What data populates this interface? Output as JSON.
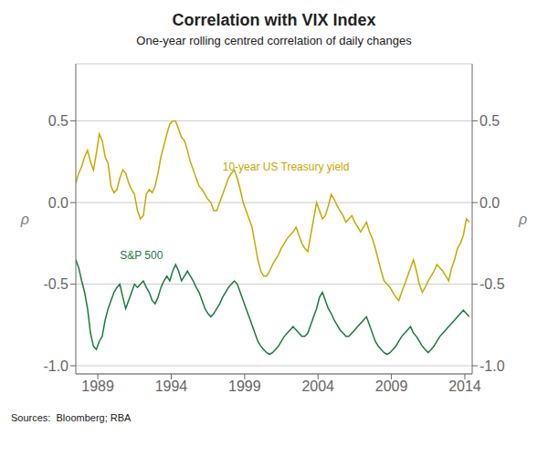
{
  "chart_data": {
    "type": "line",
    "title": "Correlation with VIX Index",
    "subtitle": "One-year rolling centred correlation of daily changes",
    "ylabel": "ρ",
    "y2label": "ρ",
    "source": "Sources:  Bloomberg; RBA",
    "xlim": [
      1987.5,
      2014.5
    ],
    "ylim": [
      -1.05,
      0.85
    ],
    "yticks": [
      {
        "value": -1.0,
        "label": "-1.0"
      },
      -0.5,
      {
        "value": 0.0,
        "label": "0.0"
      },
      0.5
    ],
    "y2lim": [
      -1.05,
      0.85
    ],
    "y2ticks": [
      {
        "value": -1.0,
        "label": "-1.0"
      },
      -0.5,
      {
        "value": 0.0,
        "label": "0.0"
      },
      0.5
    ],
    "xticks": [
      1989,
      1994,
      1999,
      2004,
      2009,
      2014
    ],
    "grid": true,
    "annotations": [
      {
        "text": "10-year US Treasury yield",
        "x": 1997.5,
        "y": 0.22,
        "color": "#C8A800"
      },
      {
        "text": "S&P 500",
        "x": 1990.5,
        "y": -0.32,
        "color": "#1B7A3E"
      }
    ],
    "x": [
      1987.5,
      1987.7,
      1987.9,
      1988.1,
      1988.3,
      1988.5,
      1988.7,
      1988.9,
      1989.1,
      1989.3,
      1989.5,
      1989.7,
      1989.9,
      1990.1,
      1990.3,
      1990.5,
      1990.7,
      1990.9,
      1991.1,
      1991.3,
      1991.5,
      1991.7,
      1991.9,
      1992.1,
      1992.3,
      1992.5,
      1992.7,
      1992.9,
      1993.1,
      1993.3,
      1993.5,
      1993.7,
      1993.9,
      1994.1,
      1994.3,
      1994.5,
      1994.7,
      1994.9,
      1995.1,
      1995.3,
      1995.5,
      1995.7,
      1995.9,
      1996.1,
      1996.3,
      1996.5,
      1996.7,
      1996.9,
      1997.1,
      1997.3,
      1997.5,
      1997.7,
      1997.9,
      1998.1,
      1998.3,
      1998.5,
      1998.7,
      1998.9,
      1999.1,
      1999.3,
      1999.5,
      1999.7,
      1999.9,
      2000.1,
      2000.3,
      2000.5,
      2000.7,
      2000.9,
      2001.1,
      2001.3,
      2001.5,
      2001.7,
      2001.9,
      2002.1,
      2002.3,
      2002.5,
      2002.7,
      2002.9,
      2003.1,
      2003.3,
      2003.5,
      2003.7,
      2003.9,
      2004.1,
      2004.3,
      2004.5,
      2004.7,
      2004.9,
      2005.1,
      2005.3,
      2005.5,
      2005.7,
      2005.9,
      2006.1,
      2006.3,
      2006.5,
      2006.7,
      2006.9,
      2007.1,
      2007.3,
      2007.5,
      2007.7,
      2007.9,
      2008.1,
      2008.3,
      2008.5,
      2008.7,
      2008.9,
      2009.1,
      2009.3,
      2009.5,
      2009.7,
      2009.9,
      2010.1,
      2010.3,
      2010.5,
      2010.7,
      2010.9,
      2011.1,
      2011.3,
      2011.5,
      2011.7,
      2011.9,
      2012.1,
      2012.3,
      2012.5,
      2012.7,
      2012.9,
      2013.1,
      2013.3,
      2013.5,
      2013.7,
      2013.9,
      2014.1,
      2014.3
    ],
    "series": [
      {
        "color": "#C8A800",
        "values": [
          0.12,
          0.18,
          0.22,
          0.28,
          0.32,
          0.25,
          0.2,
          0.3,
          0.42,
          0.38,
          0.28,
          0.24,
          0.1,
          0.06,
          0.08,
          0.15,
          0.2,
          0.18,
          0.12,
          0.08,
          0.05,
          -0.05,
          -0.1,
          -0.08,
          0.05,
          0.08,
          0.06,
          0.1,
          0.18,
          0.28,
          0.35,
          0.42,
          0.48,
          0.5,
          0.5,
          0.45,
          0.4,
          0.38,
          0.32,
          0.25,
          0.2,
          0.15,
          0.1,
          0.08,
          0.05,
          0.02,
          0.0,
          -0.05,
          -0.05,
          0.0,
          0.05,
          0.1,
          0.15,
          0.18,
          0.2,
          0.15,
          0.08,
          0.0,
          -0.05,
          -0.1,
          -0.15,
          -0.25,
          -0.35,
          -0.42,
          -0.45,
          -0.45,
          -0.42,
          -0.38,
          -0.35,
          -0.32,
          -0.28,
          -0.25,
          -0.22,
          -0.2,
          -0.18,
          -0.15,
          -0.2,
          -0.25,
          -0.28,
          -0.3,
          -0.2,
          -0.1,
          0.0,
          -0.05,
          -0.1,
          -0.08,
          -0.02,
          0.05,
          0.02,
          -0.02,
          -0.05,
          -0.08,
          -0.12,
          -0.1,
          -0.08,
          -0.12,
          -0.15,
          -0.18,
          -0.15,
          -0.12,
          -0.18,
          -0.22,
          -0.28,
          -0.35,
          -0.42,
          -0.48,
          -0.5,
          -0.52,
          -0.55,
          -0.58,
          -0.6,
          -0.55,
          -0.5,
          -0.45,
          -0.4,
          -0.35,
          -0.42,
          -0.5,
          -0.55,
          -0.52,
          -0.48,
          -0.45,
          -0.42,
          -0.38,
          -0.4,
          -0.42,
          -0.45,
          -0.48,
          -0.4,
          -0.35,
          -0.28,
          -0.25,
          -0.2,
          -0.1,
          -0.12
        ]
      },
      {
        "color": "#1B7A3E",
        "values": [
          -0.35,
          -0.4,
          -0.48,
          -0.55,
          -0.65,
          -0.8,
          -0.88,
          -0.9,
          -0.85,
          -0.82,
          -0.72,
          -0.65,
          -0.6,
          -0.55,
          -0.52,
          -0.5,
          -0.58,
          -0.65,
          -0.6,
          -0.55,
          -0.5,
          -0.52,
          -0.5,
          -0.48,
          -0.52,
          -0.55,
          -0.6,
          -0.62,
          -0.58,
          -0.52,
          -0.48,
          -0.45,
          -0.48,
          -0.42,
          -0.38,
          -0.42,
          -0.48,
          -0.45,
          -0.42,
          -0.45,
          -0.48,
          -0.52,
          -0.55,
          -0.6,
          -0.65,
          -0.68,
          -0.7,
          -0.68,
          -0.65,
          -0.62,
          -0.58,
          -0.55,
          -0.52,
          -0.5,
          -0.48,
          -0.5,
          -0.55,
          -0.6,
          -0.65,
          -0.7,
          -0.75,
          -0.8,
          -0.85,
          -0.88,
          -0.9,
          -0.92,
          -0.93,
          -0.92,
          -0.9,
          -0.88,
          -0.85,
          -0.82,
          -0.8,
          -0.78,
          -0.76,
          -0.78,
          -0.8,
          -0.82,
          -0.82,
          -0.8,
          -0.75,
          -0.7,
          -0.65,
          -0.58,
          -0.55,
          -0.6,
          -0.65,
          -0.68,
          -0.72,
          -0.75,
          -0.78,
          -0.8,
          -0.82,
          -0.82,
          -0.8,
          -0.78,
          -0.76,
          -0.74,
          -0.72,
          -0.7,
          -0.75,
          -0.8,
          -0.85,
          -0.88,
          -0.9,
          -0.92,
          -0.93,
          -0.92,
          -0.9,
          -0.88,
          -0.85,
          -0.82,
          -0.8,
          -0.78,
          -0.76,
          -0.8,
          -0.82,
          -0.85,
          -0.88,
          -0.9,
          -0.92,
          -0.9,
          -0.88,
          -0.85,
          -0.82,
          -0.8,
          -0.78,
          -0.76,
          -0.74,
          -0.72,
          -0.7,
          -0.68,
          -0.66,
          -0.68,
          -0.7
        ]
      }
    ]
  }
}
